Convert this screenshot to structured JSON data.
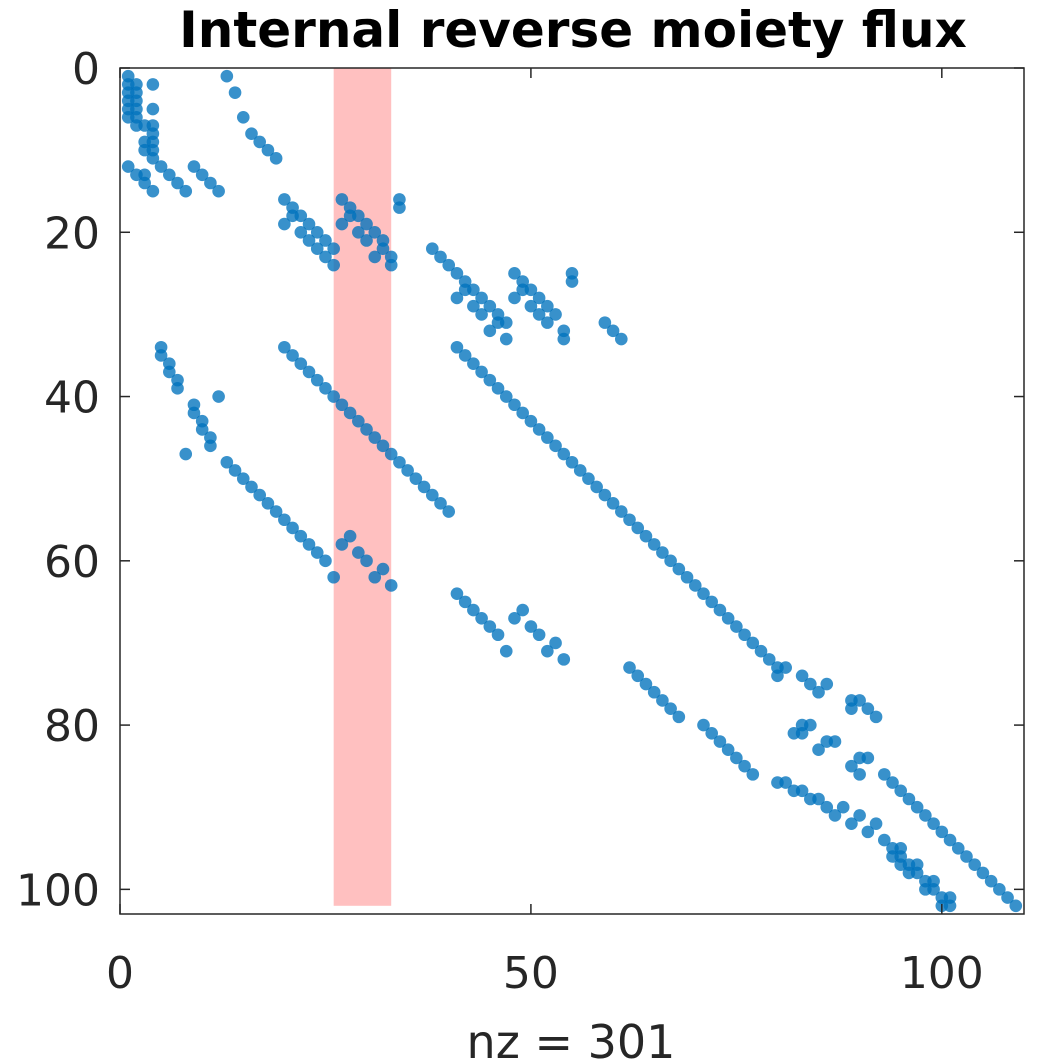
{
  "chart_data": {
    "type": "scatter",
    "title": "Internal reverse moiety flux",
    "xlabel": "nz = 301",
    "ylabel": "",
    "xlim": [
      0,
      110
    ],
    "ylim": [
      0,
      103
    ],
    "y_reversed": true,
    "xticks": [
      0,
      50,
      100
    ],
    "yticks": [
      0,
      20,
      40,
      60,
      80,
      100
    ],
    "grid": false,
    "box": true,
    "marker_color": "#0072BD",
    "highlight": {
      "x0": 26,
      "x1": 33,
      "y0": 0,
      "y1": 102,
      "color": "#ff9999"
    },
    "points": [
      [
        1,
        1
      ],
      [
        1,
        2
      ],
      [
        1,
        3
      ],
      [
        1,
        4
      ],
      [
        1,
        5
      ],
      [
        1,
        6
      ],
      [
        2,
        2
      ],
      [
        2,
        3
      ],
      [
        2,
        4
      ],
      [
        2,
        5
      ],
      [
        2,
        6
      ],
      [
        2,
        7
      ],
      [
        3,
        7
      ],
      [
        3,
        9
      ],
      [
        3,
        10
      ],
      [
        3,
        13
      ],
      [
        3,
        14
      ],
      [
        4,
        7
      ],
      [
        4,
        9
      ],
      [
        4,
        10
      ],
      [
        4,
        11
      ],
      [
        4,
        15
      ],
      [
        1,
        12
      ],
      [
        2,
        13
      ],
      [
        4,
        2
      ],
      [
        4,
        5
      ],
      [
        4,
        8
      ],
      [
        5,
        12
      ],
      [
        6,
        13
      ],
      [
        7,
        14
      ],
      [
        8,
        15
      ],
      [
        9,
        12
      ],
      [
        10,
        13
      ],
      [
        11,
        14
      ],
      [
        12,
        15
      ],
      [
        13,
        1
      ],
      [
        14,
        3
      ],
      [
        15,
        6
      ],
      [
        16,
        8
      ],
      [
        17,
        9
      ],
      [
        18,
        10
      ],
      [
        19,
        11
      ],
      [
        20,
        16
      ],
      [
        21,
        17
      ],
      [
        20,
        19
      ],
      [
        21,
        18
      ],
      [
        22,
        18
      ],
      [
        22,
        20
      ],
      [
        23,
        19
      ],
      [
        23,
        21
      ],
      [
        24,
        20
      ],
      [
        24,
        22
      ],
      [
        25,
        21
      ],
      [
        25,
        23
      ],
      [
        26,
        22
      ],
      [
        26,
        24
      ],
      [
        27,
        16
      ],
      [
        28,
        17
      ],
      [
        27,
        19
      ],
      [
        28,
        18
      ],
      [
        29,
        18
      ],
      [
        29,
        20
      ],
      [
        30,
        19
      ],
      [
        30,
        21
      ],
      [
        31,
        20
      ],
      [
        31,
        23
      ],
      [
        32,
        21
      ],
      [
        32,
        22
      ],
      [
        33,
        23
      ],
      [
        33,
        24
      ],
      [
        34,
        16
      ],
      [
        34,
        17
      ],
      [
        38,
        22
      ],
      [
        39,
        23
      ],
      [
        40,
        24
      ],
      [
        41,
        25
      ],
      [
        41,
        28
      ],
      [
        42,
        26
      ],
      [
        42,
        27
      ],
      [
        43,
        27
      ],
      [
        43,
        29
      ],
      [
        44,
        28
      ],
      [
        44,
        30
      ],
      [
        45,
        29
      ],
      [
        45,
        32
      ],
      [
        46,
        30
      ],
      [
        46,
        31
      ],
      [
        47,
        31
      ],
      [
        47,
        33
      ],
      [
        48,
        25
      ],
      [
        48,
        28
      ],
      [
        49,
        26
      ],
      [
        49,
        27
      ],
      [
        50,
        27
      ],
      [
        50,
        29
      ],
      [
        51,
        28
      ],
      [
        51,
        30
      ],
      [
        52,
        29
      ],
      [
        52,
        31
      ],
      [
        53,
        30
      ],
      [
        54,
        32
      ],
      [
        54,
        33
      ],
      [
        55,
        25
      ],
      [
        55,
        26
      ],
      [
        59,
        31
      ],
      [
        60,
        32
      ],
      [
        61,
        33
      ],
      [
        5,
        34
      ],
      [
        5,
        35
      ],
      [
        6,
        36
      ],
      [
        6,
        37
      ],
      [
        7,
        38
      ],
      [
        7,
        39
      ],
      [
        9,
        41
      ],
      [
        9,
        42
      ],
      [
        10,
        43
      ],
      [
        10,
        44
      ],
      [
        11,
        45
      ],
      [
        11,
        46
      ],
      [
        8,
        47
      ],
      [
        12,
        40
      ],
      [
        20,
        34
      ],
      [
        21,
        35
      ],
      [
        22,
        36
      ],
      [
        23,
        37
      ],
      [
        24,
        38
      ],
      [
        25,
        39
      ],
      [
        26,
        40
      ],
      [
        27,
        41
      ],
      [
        28,
        42
      ],
      [
        29,
        43
      ],
      [
        30,
        44
      ],
      [
        31,
        45
      ],
      [
        32,
        46
      ],
      [
        33,
        47
      ],
      [
        34,
        48
      ],
      [
        35,
        49
      ],
      [
        36,
        50
      ],
      [
        37,
        51
      ],
      [
        38,
        52
      ],
      [
        39,
        53
      ],
      [
        40,
        54
      ],
      [
        13,
        48
      ],
      [
        14,
        49
      ],
      [
        15,
        50
      ],
      [
        16,
        51
      ],
      [
        17,
        52
      ],
      [
        18,
        53
      ],
      [
        19,
        54
      ],
      [
        20,
        55
      ],
      [
        21,
        56
      ],
      [
        22,
        57
      ],
      [
        23,
        58
      ],
      [
        24,
        59
      ],
      [
        25,
        60
      ],
      [
        26,
        62
      ],
      [
        27,
        58
      ],
      [
        28,
        57
      ],
      [
        29,
        59
      ],
      [
        30,
        60
      ],
      [
        31,
        62
      ],
      [
        32,
        61
      ],
      [
        33,
        63
      ],
      [
        41,
        34
      ],
      [
        42,
        35
      ],
      [
        43,
        36
      ],
      [
        44,
        37
      ],
      [
        45,
        38
      ],
      [
        46,
        39
      ],
      [
        47,
        40
      ],
      [
        48,
        41
      ],
      [
        49,
        42
      ],
      [
        50,
        43
      ],
      [
        51,
        44
      ],
      [
        52,
        45
      ],
      [
        53,
        46
      ],
      [
        54,
        47
      ],
      [
        55,
        48
      ],
      [
        56,
        49
      ],
      [
        57,
        50
      ],
      [
        58,
        51
      ],
      [
        59,
        52
      ],
      [
        60,
        53
      ],
      [
        61,
        54
      ],
      [
        62,
        55
      ],
      [
        63,
        56
      ],
      [
        64,
        57
      ],
      [
        65,
        58
      ],
      [
        66,
        59
      ],
      [
        67,
        60
      ],
      [
        68,
        61
      ],
      [
        69,
        62
      ],
      [
        70,
        63
      ],
      [
        71,
        64
      ],
      [
        72,
        65
      ],
      [
        73,
        66
      ],
      [
        74,
        67
      ],
      [
        75,
        68
      ],
      [
        76,
        69
      ],
      [
        77,
        70
      ],
      [
        78,
        71
      ],
      [
        79,
        72
      ],
      [
        80,
        73
      ],
      [
        80,
        74
      ],
      [
        81,
        73
      ],
      [
        41,
        64
      ],
      [
        42,
        65
      ],
      [
        43,
        66
      ],
      [
        44,
        67
      ],
      [
        45,
        68
      ],
      [
        46,
        69
      ],
      [
        47,
        71
      ],
      [
        48,
        67
      ],
      [
        49,
        66
      ],
      [
        50,
        68
      ],
      [
        51,
        69
      ],
      [
        52,
        71
      ],
      [
        53,
        70
      ],
      [
        54,
        72
      ],
      [
        62,
        73
      ],
      [
        63,
        74
      ],
      [
        64,
        75
      ],
      [
        65,
        76
      ],
      [
        66,
        77
      ],
      [
        67,
        78
      ],
      [
        68,
        79
      ],
      [
        71,
        80
      ],
      [
        72,
        81
      ],
      [
        73,
        82
      ],
      [
        74,
        83
      ],
      [
        75,
        84
      ],
      [
        76,
        85
      ],
      [
        77,
        86
      ],
      [
        83,
        74
      ],
      [
        84,
        75
      ],
      [
        85,
        76
      ],
      [
        86,
        75
      ],
      [
        85,
        83
      ],
      [
        86,
        82
      ],
      [
        87,
        82
      ],
      [
        84,
        80
      ],
      [
        83,
        80
      ],
      [
        82,
        81
      ],
      [
        83,
        81
      ],
      [
        89,
        77
      ],
      [
        89,
        78
      ],
      [
        90,
        77
      ],
      [
        91,
        78
      ],
      [
        92,
        79
      ],
      [
        89,
        85
      ],
      [
        90,
        84
      ],
      [
        91,
        84
      ],
      [
        90,
        86
      ],
      [
        80,
        87
      ],
      [
        81,
        87
      ],
      [
        82,
        88
      ],
      [
        83,
        88
      ],
      [
        84,
        89
      ],
      [
        85,
        89
      ],
      [
        86,
        90
      ],
      [
        87,
        91
      ],
      [
        88,
        90
      ],
      [
        89,
        92
      ],
      [
        90,
        91
      ],
      [
        91,
        93
      ],
      [
        92,
        92
      ],
      [
        93,
        94
      ],
      [
        94,
        95
      ],
      [
        94,
        96
      ],
      [
        95,
        95
      ],
      [
        95,
        96
      ],
      [
        95,
        97
      ],
      [
        96,
        97
      ],
      [
        96,
        98
      ],
      [
        97,
        97
      ],
      [
        97,
        98
      ],
      [
        98,
        99
      ],
      [
        98,
        100
      ],
      [
        99,
        99
      ],
      [
        99,
        100
      ],
      [
        100,
        101
      ],
      [
        100,
        102
      ],
      [
        101,
        101
      ],
      [
        101,
        102
      ],
      [
        93,
        86
      ],
      [
        94,
        87
      ],
      [
        95,
        88
      ],
      [
        96,
        89
      ],
      [
        97,
        90
      ],
      [
        98,
        91
      ],
      [
        99,
        92
      ],
      [
        100,
        93
      ],
      [
        101,
        94
      ],
      [
        102,
        95
      ],
      [
        103,
        96
      ],
      [
        104,
        97
      ],
      [
        105,
        98
      ],
      [
        106,
        99
      ],
      [
        107,
        100
      ],
      [
        108,
        101
      ],
      [
        109,
        102
      ]
    ]
  }
}
